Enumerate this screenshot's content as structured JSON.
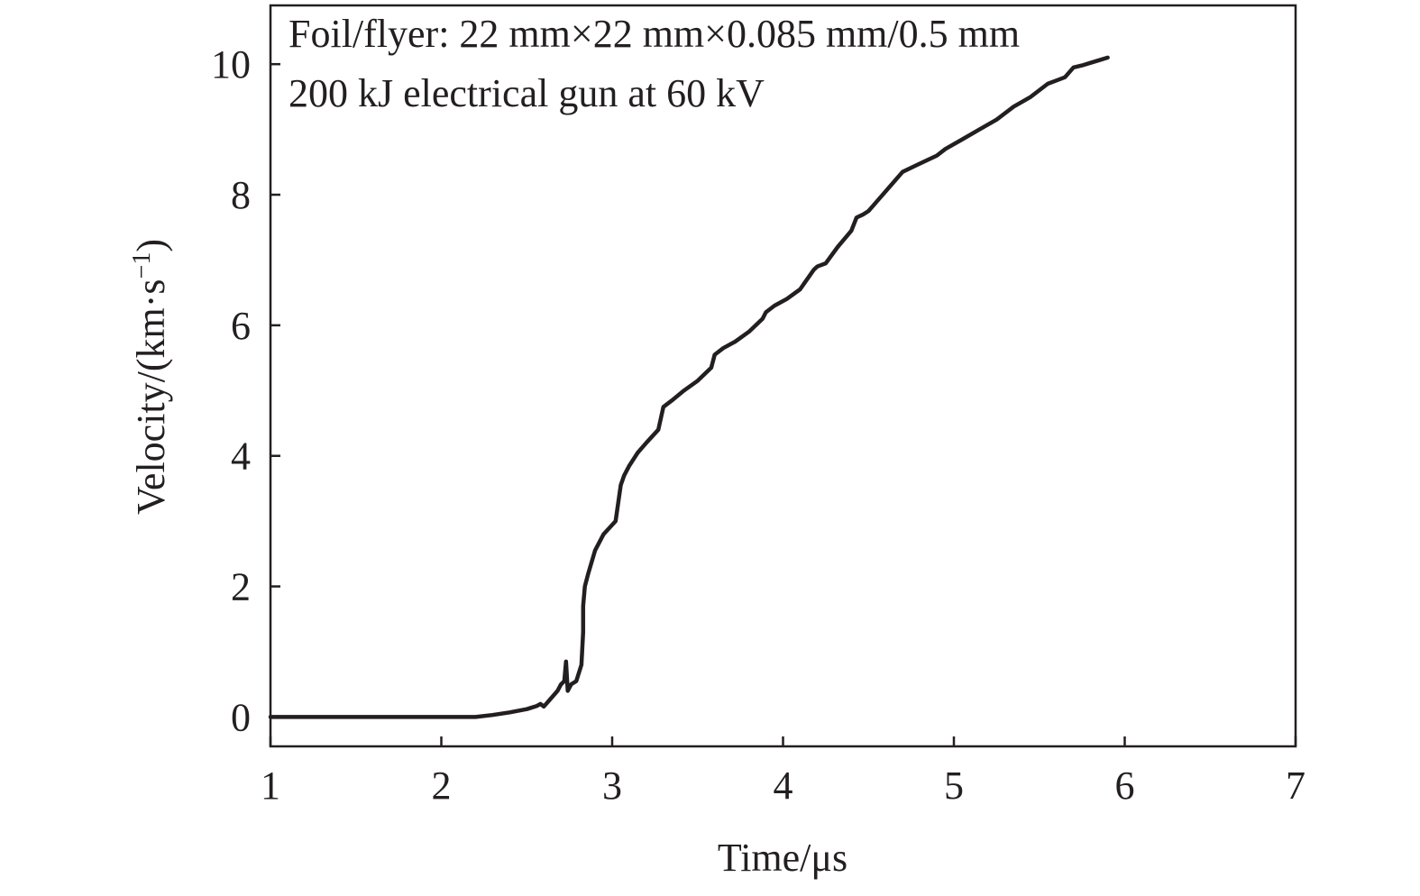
{
  "chart_data": {
    "type": "line",
    "xlabel": "Time/μs",
    "ylabel": "Velocity/(km·s⁻¹)",
    "ylabel_parts": {
      "main": "Velocity/(km·s",
      "sup": "−1",
      "tail": ")"
    },
    "xlim": [
      1,
      7
    ],
    "ylim": [
      -0.45,
      10.9
    ],
    "xticks": [
      1,
      2,
      3,
      4,
      5,
      6,
      7
    ],
    "yticks": [
      0,
      2,
      4,
      6,
      8,
      10
    ],
    "grid": false,
    "annotations": [
      "Foil/flyer: 22 mm×22 mm×0.085 mm/0.5 mm",
      "200 kJ electrical gun at 60 kV"
    ],
    "series": [
      {
        "x": [
          1.0,
          1.5,
          2.0,
          2.2,
          2.3,
          2.4,
          2.5,
          2.56,
          2.58,
          2.6,
          2.64,
          2.68,
          2.7,
          2.72,
          2.73,
          2.74,
          2.76,
          2.79,
          2.82,
          2.83,
          2.83,
          2.84,
          2.86,
          2.9,
          2.95,
          3.02,
          3.05,
          3.07,
          3.1,
          3.15,
          3.2,
          3.27,
          3.3,
          3.35,
          3.42,
          3.5,
          3.58,
          3.6,
          3.65,
          3.72,
          3.8,
          3.88,
          3.9,
          3.95,
          4.02,
          4.1,
          4.18,
          4.2,
          4.25,
          4.32,
          4.4,
          4.43,
          4.47,
          4.5,
          4.55,
          4.65,
          4.7,
          4.78,
          4.9,
          4.95,
          5.05,
          5.15,
          5.25,
          5.35,
          5.45,
          5.55,
          5.6,
          5.65,
          5.7,
          5.75,
          5.8,
          5.85,
          5.9
        ],
        "y": [
          0.0,
          0.0,
          0.0,
          0.0,
          0.03,
          0.07,
          0.12,
          0.17,
          0.2,
          0.16,
          0.28,
          0.4,
          0.5,
          0.55,
          0.85,
          0.4,
          0.5,
          0.55,
          0.8,
          1.3,
          1.7,
          2.0,
          2.2,
          2.55,
          2.8,
          3.0,
          3.55,
          3.7,
          3.85,
          4.05,
          4.2,
          4.4,
          4.75,
          4.85,
          5.0,
          5.15,
          5.35,
          5.55,
          5.65,
          5.75,
          5.9,
          6.1,
          6.2,
          6.3,
          6.4,
          6.55,
          6.85,
          6.9,
          6.95,
          7.2,
          7.45,
          7.65,
          7.7,
          7.75,
          7.9,
          8.2,
          8.35,
          8.45,
          8.6,
          8.7,
          8.85,
          9.0,
          9.15,
          9.35,
          9.5,
          9.7,
          9.75,
          9.8,
          9.95,
          9.98,
          10.02,
          10.06,
          10.1
        ]
      }
    ]
  }
}
